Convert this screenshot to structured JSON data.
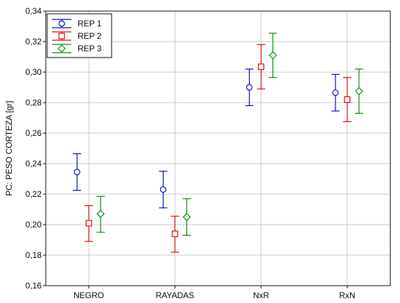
{
  "chart_data": {
    "type": "scatter",
    "subtype": "mean-with-error-bars",
    "title": "",
    "xlabel": "",
    "ylabel": "PC: PESO CORTEZA [gr]",
    "categories": [
      "NEGRO",
      "RAYADAS",
      "NxR",
      "RxN"
    ],
    "ylim": [
      0.16,
      0.34
    ],
    "yticks": [
      "0,16",
      "0,18",
      "0,20",
      "0,22",
      "0,24",
      "0,26",
      "0,28",
      "0,30",
      "0,32",
      "0,34"
    ],
    "grid": true,
    "legend_position": "top-left",
    "series": [
      {
        "name": "REP 1",
        "color": "#0000cc",
        "marker": "circle",
        "values": [
          0.2345,
          0.223,
          0.29,
          0.2865
        ],
        "lower": [
          0.2225,
          0.211,
          0.278,
          0.2745
        ],
        "upper": [
          0.2465,
          0.235,
          0.302,
          0.2985
        ]
      },
      {
        "name": "REP 2",
        "color": "#dd0000",
        "marker": "square",
        "values": [
          0.201,
          0.194,
          0.3035,
          0.282
        ],
        "lower": [
          0.189,
          0.182,
          0.289,
          0.2675
        ],
        "upper": [
          0.2125,
          0.2055,
          0.318,
          0.2965
        ]
      },
      {
        "name": "REP 3",
        "color": "#008800",
        "marker": "diamond",
        "values": [
          0.207,
          0.205,
          0.311,
          0.2875
        ],
        "lower": [
          0.195,
          0.193,
          0.2965,
          0.273
        ],
        "upper": [
          0.2185,
          0.217,
          0.3255,
          0.302
        ]
      }
    ]
  }
}
